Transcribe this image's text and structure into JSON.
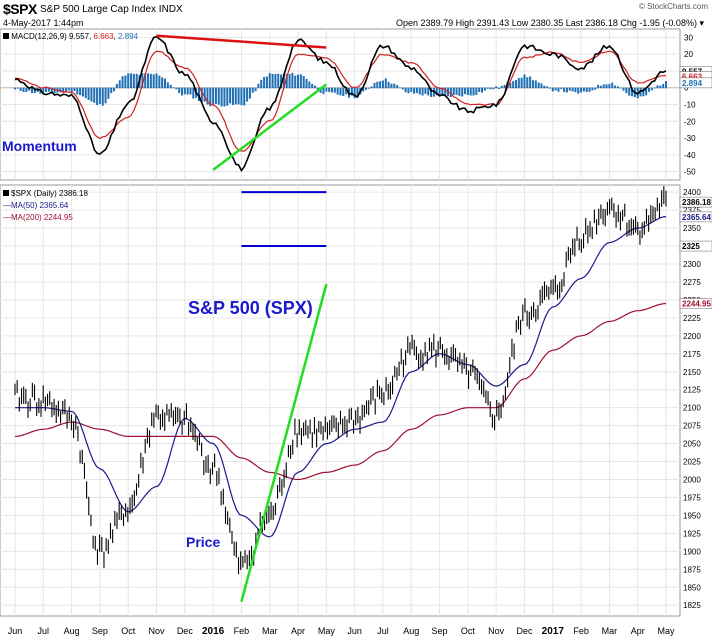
{
  "header": {
    "symbol": "$SPX",
    "description": "S&P 500 Large Cap Index INDX",
    "date": "4-May-2017 1:44pm",
    "open_label": "Open",
    "open": "2389.79",
    "high_label": "High",
    "high": "2391.43",
    "low_label": "Low",
    "low": "2380.35",
    "last_label": "Last",
    "last": "2386.18",
    "chg_label": "Chg",
    "chg": "-1.95 (-0.08%)",
    "logo": "© StockCharts.com"
  },
  "macd_panel": {
    "legend_name": "MACD(12,26,9)",
    "macd_val": "9.557",
    "signal_val": "6.663",
    "hist_val": "2.894",
    "annotation": "Momentum",
    "y_ticks": [
      "30",
      "20",
      "10",
      "0",
      "-10",
      "-20",
      "-30",
      "-40",
      "-50"
    ],
    "tag_macd": "9.557",
    "tag_signal": "6.663",
    "tag_hist": "2.894"
  },
  "price_panel": {
    "legend_price": "$SPX (Daily) 2386.18",
    "legend_ma50": "MA(50) 2365.64",
    "legend_ma200": "MA(200) 2244.95",
    "title_annotation": "S&P 500 (SPX)",
    "price_annotation": "Price",
    "y_ticks": [
      "2400",
      "2375",
      "2350",
      "2325",
      "2300",
      "2275",
      "2250",
      "2225",
      "2200",
      "2175",
      "2150",
      "2125",
      "2100",
      "2075",
      "2050",
      "2025",
      "2000",
      "1975",
      "1950",
      "1925",
      "1900",
      "1875",
      "1850",
      "1825"
    ],
    "tag_last": "2386.18",
    "tag_ma50": "2365.64",
    "tag_ma200": "2244.95",
    "tag_2325": "2325"
  },
  "x_axis": {
    "labels": [
      "Jun",
      "Jul",
      "Aug",
      "Sep",
      "Oct",
      "Nov",
      "Dec",
      "2016",
      "Feb",
      "Mar",
      "Apr",
      "May",
      "Jun",
      "Jul",
      "Aug",
      "Sep",
      "Oct",
      "Nov",
      "Dec",
      "2017",
      "Feb",
      "Mar",
      "Apr",
      "May"
    ],
    "bold": [
      "2016",
      "2017"
    ]
  },
  "colors": {
    "price": "#000000",
    "ma50": "#1a1a8c",
    "ma200": "#a01030",
    "macd": "#000000",
    "signal": "#d02020",
    "hist": "#1f6fb4",
    "trend_green": "#22dd22",
    "trend_red": "#dd1111",
    "channel_blue": "#0000cc",
    "annotation_blue": "#1a1acc"
  },
  "chart_data": [
    {
      "type": "line",
      "title": "MACD(12,26,9)",
      "annotation": "Momentum",
      "ylim": [
        -55,
        35
      ],
      "x": [
        "Jun",
        "Jul",
        "Aug",
        "Sep",
        "Oct",
        "Nov",
        "Dec",
        "2016",
        "Feb",
        "Mar",
        "Apr",
        "May",
        "Jun",
        "Jul",
        "Aug",
        "Sep",
        "Oct",
        "Nov",
        "Dec",
        "2017",
        "Feb",
        "Mar",
        "Apr",
        "May"
      ],
      "series": [
        {
          "name": "MACD",
          "values": [
            5,
            -3,
            -5,
            -40,
            -10,
            30,
            8,
            -20,
            -48,
            -12,
            28,
            15,
            -5,
            25,
            12,
            -5,
            -14,
            -10,
            25,
            20,
            12,
            25,
            -3,
            10
          ]
        },
        {
          "name": "Signal",
          "values": [
            6,
            0,
            -3,
            -30,
            -18,
            22,
            12,
            -10,
            -38,
            -20,
            20,
            18,
            0,
            20,
            15,
            0,
            -10,
            -10,
            18,
            21,
            15,
            22,
            3,
            7
          ]
        },
        {
          "name": "Histogram",
          "values": [
            -1,
            -3,
            -2,
            -10,
            8,
            8,
            -4,
            -10,
            -10,
            8,
            8,
            -3,
            -5,
            5,
            -3,
            -5,
            -4,
            0,
            7,
            -1,
            -3,
            3,
            -6,
            3
          ]
        }
      ],
      "trendlines": [
        {
          "color": "red",
          "from": [
            "Nov",
            "31"
          ],
          "to": [
            "May",
            "24"
          ]
        },
        {
          "color": "green",
          "from": [
            "2016",
            "-49"
          ],
          "to": [
            "May",
            "2"
          ]
        }
      ]
    },
    {
      "type": "line",
      "title": "$SPX (Daily) 2386.18",
      "annotation": "S&P 500 (SPX)",
      "ylim": [
        1810,
        2410
      ],
      "x": [
        "Jun",
        "Jul",
        "Aug",
        "Sep",
        "Oct",
        "Nov",
        "Dec",
        "2016",
        "Feb",
        "Mar",
        "Apr",
        "May",
        "Jun",
        "Jul",
        "Aug",
        "Sep",
        "Oct",
        "Nov",
        "Dec",
        "2017",
        "Feb",
        "Mar",
        "Apr",
        "May"
      ],
      "series": [
        {
          "name": "$SPX",
          "values": [
            2115,
            2110,
            2085,
            1900,
            1960,
            2090,
            2080,
            2015,
            1880,
            1950,
            2070,
            2065,
            2085,
            2120,
            2180,
            2180,
            2150,
            2090,
            2230,
            2260,
            2340,
            2380,
            2350,
            2386
          ]
        },
        {
          "name": "MA(50)",
          "values": [
            2100,
            2100,
            2095,
            2015,
            1955,
            1990,
            2085,
            2050,
            1950,
            1920,
            2010,
            2050,
            2070,
            2080,
            2150,
            2175,
            2160,
            2130,
            2160,
            2240,
            2280,
            2330,
            2350,
            2366
          ]
        },
        {
          "name": "MA(200)",
          "values": [
            2060,
            2070,
            2080,
            2070,
            2060,
            2060,
            2060,
            2060,
            2030,
            2010,
            2000,
            2010,
            2020,
            2040,
            2070,
            2090,
            2100,
            2100,
            2140,
            2180,
            2200,
            2220,
            2235,
            2245
          ]
        }
      ],
      "trendlines": [
        {
          "color": "green",
          "from": [
            "Feb",
            "1830"
          ],
          "to": [
            "May",
            "2272"
          ]
        },
        {
          "color": "blue",
          "from": [
            "Feb",
            "2400"
          ],
          "to": [
            "May",
            "2400"
          ]
        },
        {
          "color": "blue",
          "from": [
            "Feb",
            "2325"
          ],
          "to": [
            "May",
            "2325"
          ]
        }
      ]
    }
  ]
}
